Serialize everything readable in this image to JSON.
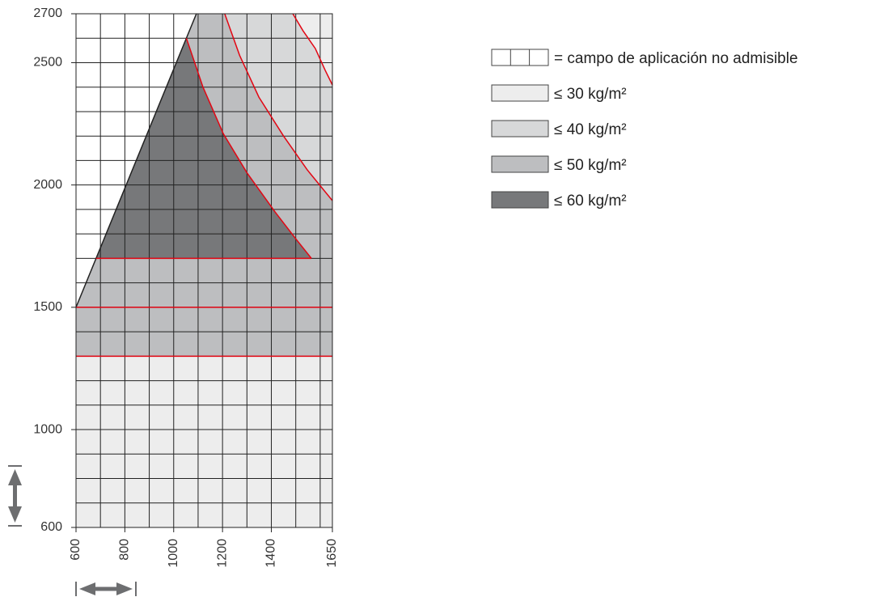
{
  "chart_data": {
    "type": "region",
    "xlim": [
      600,
      1650
    ],
    "ylim": [
      600,
      2700
    ],
    "xticks": [
      600,
      800,
      1000,
      1200,
      1400,
      1650
    ],
    "yticks": [
      600,
      1000,
      1500,
      2000,
      2500,
      2700
    ],
    "xgrid": [
      600,
      700,
      800,
      900,
      1000,
      1100,
      1200,
      1300,
      1400,
      1500,
      1600,
      1650
    ],
    "ygrid": [
      600,
      700,
      800,
      900,
      1000,
      1100,
      1200,
      1300,
      1400,
      1500,
      1600,
      1700,
      1800,
      1900,
      2000,
      2100,
      2200,
      2300,
      2400,
      2500,
      2600,
      2700
    ],
    "series": [
      {
        "name": "= campo de aplicación no admisible",
        "color": "#ffffff",
        "regions": [
          [
            [
              600,
              1500
            ],
            [
              1093,
              2700
            ],
            [
              600,
              2700
            ]
          ]
        ]
      },
      {
        "name": "≤ 30 kg/m²",
        "color": "#ededed",
        "regions": [
          [
            [
              600,
              600
            ],
            [
              1650,
              600
            ],
            [
              1650,
              1300
            ],
            [
              600,
              1300
            ]
          ],
          [
            [
              1488,
              2700
            ],
            [
              1530,
              2630
            ],
            [
              1580,
              2558
            ],
            [
              1620,
              2470
            ],
            [
              1650,
              2409
            ],
            [
              1650,
              2700
            ]
          ]
        ]
      },
      {
        "name": "≤ 40 kg/m²",
        "color": "#d7d8d9",
        "regions": [
          [
            [
              1209,
              2700
            ],
            [
              1270,
              2530
            ],
            [
              1349,
              2359
            ],
            [
              1450,
              2200
            ],
            [
              1547,
              2062
            ],
            [
              1650,
              1936
            ],
            [
              1650,
              2409
            ],
            [
              1620,
              2470
            ],
            [
              1580,
              2558
            ],
            [
              1530,
              2630
            ],
            [
              1488,
              2700
            ]
          ]
        ]
      },
      {
        "name": "≤ 50 kg/m²",
        "color": "#bdbec0",
        "regions": [
          [
            [
              600,
              1300
            ],
            [
              1650,
              1300
            ],
            [
              1650,
              1936
            ],
            [
              1547,
              2062
            ],
            [
              1450,
              2200
            ],
            [
              1349,
              2359
            ],
            [
              1270,
              2530
            ],
            [
              1209,
              2700
            ],
            [
              1093,
              2700
            ],
            [
              600,
              1500
            ]
          ]
        ]
      },
      {
        "name": "≤ 60 kg/m²",
        "color": "#77787a",
        "regions": [
          [
            [
              682,
              1700
            ],
            [
              1052,
              2600
            ],
            [
              1120,
              2400
            ],
            [
              1203,
              2210
            ],
            [
              1300,
              2050
            ],
            [
              1415,
              1890
            ],
            [
              1500,
              1780
            ],
            [
              1564,
              1700
            ]
          ]
        ]
      }
    ],
    "boundaries": [
      {
        "color": "#222222",
        "points": [
          [
            600,
            1500
          ],
          [
            1093,
            2700
          ]
        ]
      },
      {
        "color": "#e30613",
        "points": [
          [
            600,
            1300
          ],
          [
            1650,
            1300
          ]
        ]
      },
      {
        "color": "#e30613",
        "points": [
          [
            600,
            1500
          ],
          [
            1650,
            1500
          ]
        ]
      },
      {
        "color": "#e30613",
        "points": [
          [
            682,
            1700
          ],
          [
            1564,
            1700
          ]
        ]
      },
      {
        "color": "#e30613",
        "points": [
          [
            1052,
            2600
          ],
          [
            1120,
            2400
          ],
          [
            1203,
            2210
          ],
          [
            1300,
            2050
          ],
          [
            1415,
            1890
          ],
          [
            1500,
            1780
          ],
          [
            1564,
            1700
          ]
        ]
      },
      {
        "color": "#e30613",
        "points": [
          [
            1209,
            2700
          ],
          [
            1270,
            2530
          ],
          [
            1349,
            2359
          ],
          [
            1450,
            2200
          ],
          [
            1547,
            2062
          ],
          [
            1650,
            1936
          ]
        ]
      },
      {
        "color": "#e30613",
        "points": [
          [
            1488,
            2700
          ],
          [
            1530,
            2630
          ],
          [
            1580,
            2558
          ],
          [
            1620,
            2470
          ],
          [
            1650,
            2409
          ]
        ]
      }
    ]
  }
}
